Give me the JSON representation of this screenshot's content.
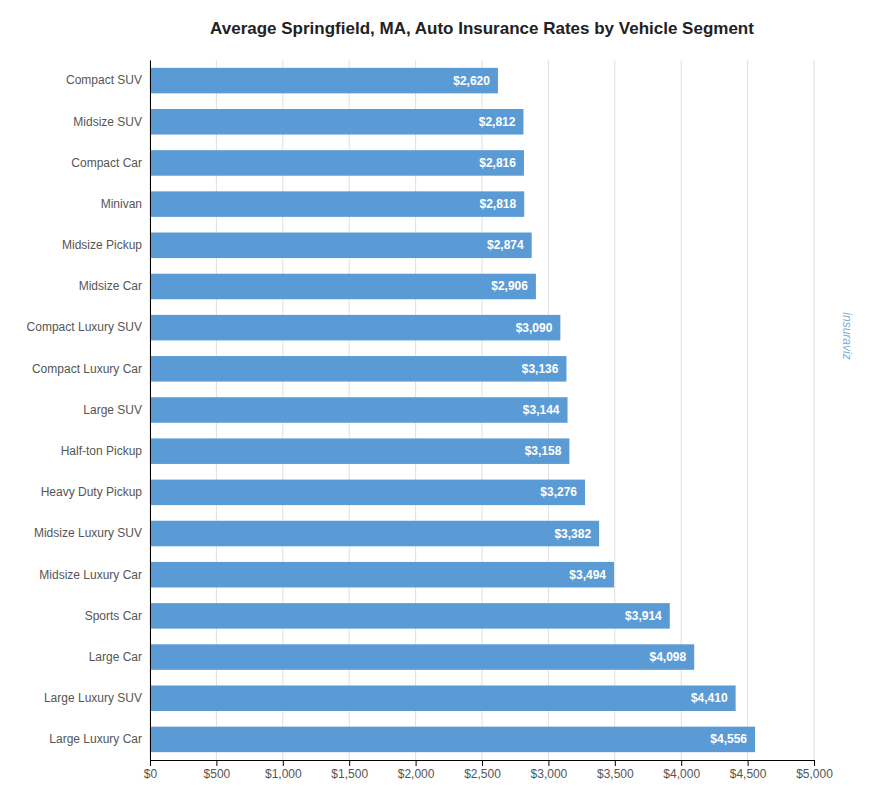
{
  "chart_data": {
    "type": "bar",
    "orientation": "horizontal",
    "title": "Average Springfield, MA, Auto Insurance Rates by Vehicle Segment",
    "categories": [
      "Large Luxury Car",
      "Large Luxury SUV",
      "Large Car",
      "Sports Car",
      "Midsize Luxury Car",
      "Midsize Luxury SUV",
      "Heavy Duty Pickup",
      "Half-ton Pickup",
      "Large SUV",
      "Compact Luxury Car",
      "Compact Luxury SUV",
      "Midsize Car",
      "Midsize Pickup",
      "Minivan",
      "Compact Car",
      "Midsize SUV",
      "Compact SUV"
    ],
    "values": [
      4556,
      4410,
      4098,
      3914,
      3494,
      3382,
      3276,
      3158,
      3144,
      3136,
      3090,
      2906,
      2874,
      2818,
      2816,
      2812,
      2620
    ],
    "value_labels": [
      "$4,556",
      "$4,410",
      "$4,098",
      "$3,914",
      "$3,494",
      "$3,382",
      "$3,276",
      "$3,158",
      "$3,144",
      "$3,136",
      "$3,090",
      "$2,906",
      "$2,874",
      "$2,818",
      "$2,816",
      "$2,812",
      "$2,620"
    ],
    "data_labels": true,
    "color": "#5b9bd5",
    "xlim": [
      0,
      5000
    ],
    "xticks": [
      {
        "value": 0,
        "label": "$0"
      },
      {
        "value": 500,
        "label": "$500"
      },
      {
        "value": 1000,
        "label": "$1,000"
      },
      {
        "value": 1500,
        "label": "$1,500"
      },
      {
        "value": 2000,
        "label": "$2,000"
      },
      {
        "value": 2500,
        "label": "$2,500"
      },
      {
        "value": 3000,
        "label": "$3,000"
      },
      {
        "value": 3500,
        "label": "$3,500"
      },
      {
        "value": 4000,
        "label": "$4,000"
      },
      {
        "value": 4500,
        "label": "$4,500"
      },
      {
        "value": 5000,
        "label": "$5,000"
      }
    ],
    "grid": true,
    "annotations": [
      "insuraviz"
    ]
  }
}
